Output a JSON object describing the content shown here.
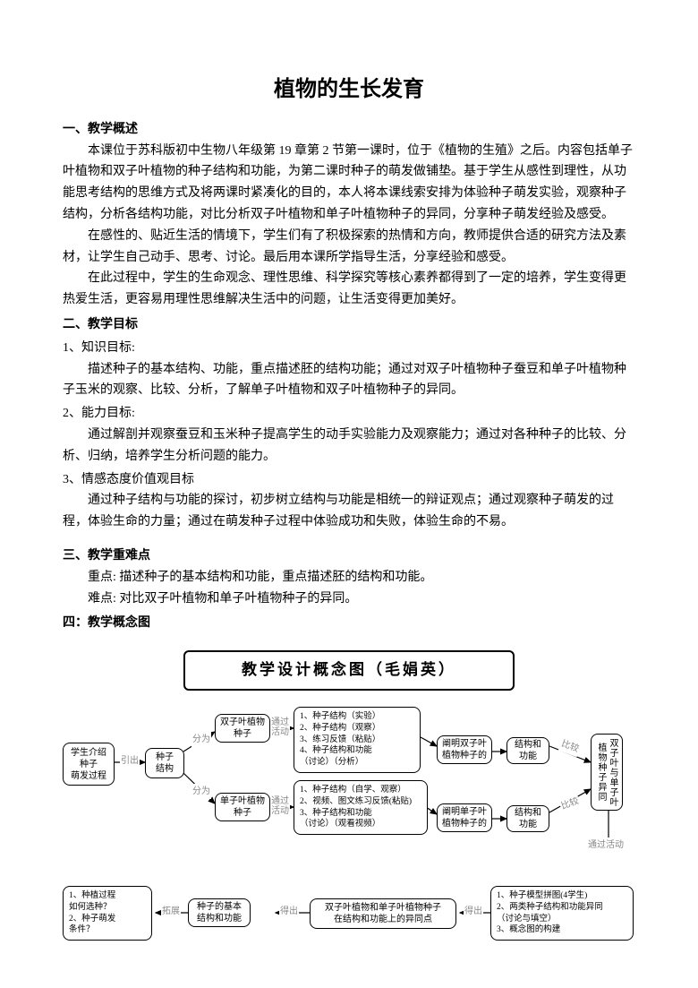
{
  "title": "植物的生长发育",
  "s1": {
    "header": "一、教学概述",
    "p1": "本课位于苏科版初中生物八年级第 19 章第 2 节第一课时，位于《植物的生殖》之后。内容包括单子叶植物和双子叶植物的种子结构和功能，为第二课时种子的萌发做铺垫。基于学生从感性到理性，从功能思考结构的思维方式及将两课时紧凑化的目的，本人将本课线索安排为体验种子萌发实验，观察种子结构，分析各结构功能，对比分析双子叶植物和单子叶植物种子的异同，分享种子萌发经验及感受。",
    "p2": "在感性的、贴近生活的情境下，学生们有了积极探索的热情和方向，教师提供合适的研究方法及素材，让学生自己动手、思考、讨论。最后用本课所学指导生活，分享经验和感受。",
    "p3": "在此过程中，学生的生命观念、理性思维、科学探究等核心素养都得到了一定的培养，学生变得更热爱生活，更容易用理性思维解决生活中的问题，让生活变得更加美好。"
  },
  "s2": {
    "header": "二、教学目标",
    "i1h": "1、知识目标:",
    "i1p": "描述种子的基本结构、功能，重点描述胚的结构功能；通过对双子叶植物种子蚕豆和单子叶植物种子玉米的观察、比较、分析，了解单子叶植物和双子叶植物种子的异同。",
    "i2h": "2、能力目标:",
    "i2p": "通过解剖并观察蚕豆和玉米种子提高学生的动手实验能力及观察能力；通过对各种种子的比较、分析、归纳，培养学生分析问题的能力。",
    "i3h": "3、情感态度价值观目标",
    "i3p": "通过种子结构与功能的探讨，初步树立结构与功能是相统一的辩证观点；通过观察种子萌发的过程，体验生命的力量；通过在萌发种子过程中体验成功和失败，体验生命的不易。"
  },
  "s3": {
    "header": "三、教学重难点",
    "p1": "重点: 描述种子的基本结构和功能，重点描述胚的结构和功能。",
    "p2": "难点: 对比双子叶植物和单子叶植物种子的异同。"
  },
  "s4": {
    "header": "四：教学概念图"
  },
  "diagram": {
    "title": "教学设计概念图（毛娟英）",
    "nodes": {
      "n_intro": "学生介绍\n种子\n萌发过程",
      "n_struct": "种子\n结构",
      "n_dicot": "双子叶植物\n种子",
      "n_mono": "单子叶植物\n种子",
      "n_dicot_list": "1、种子结构（实验）\n2、种子结构（观察）\n3、练习反馈（粘贴）\n4、种子结构和功能\n（讨论）（分析）",
      "n_mono_list": "1、种子结构（自学、观察）\n2、视频、图文练习反馈(粘贴)\n3、种子结构和功能\n（讨论）（观看视频）",
      "n_dicot_sum": "阐明双子叶\n植物种子的",
      "n_mono_sum": "阐明单子叶\n植物种子的",
      "n_sf1": "结构和\n功能",
      "n_sf2": "结构和\n功能",
      "n_compare": "双子叶与单子叶植物种子异同",
      "n_qlist": "1、种植过程\n如何选种？\n2、种子萌发\n条件？",
      "n_basic": "种子的基本\n结构和功能",
      "n_common": "双子叶植物和单子叶植物种子\n在结构和功能上的异同点",
      "n_final": "1、种子模型拼图(4学生)\n2、两类种子结构和功能异同\n（讨论与填空）\n3、概念图的构建"
    },
    "labels": {
      "l_yinchu": "引出",
      "l_fenwei1": "分为",
      "l_fenwei2": "分为",
      "l_tongguo1": "通过\n活动",
      "l_tongguo2": "通过\n活动",
      "l_bijiao1": "比较",
      "l_bijiao2": "比较",
      "l_tuozhan": "拓展",
      "l_dechu1": "得出",
      "l_dechu2": "得出",
      "l_tghd": "通过活动"
    }
  }
}
